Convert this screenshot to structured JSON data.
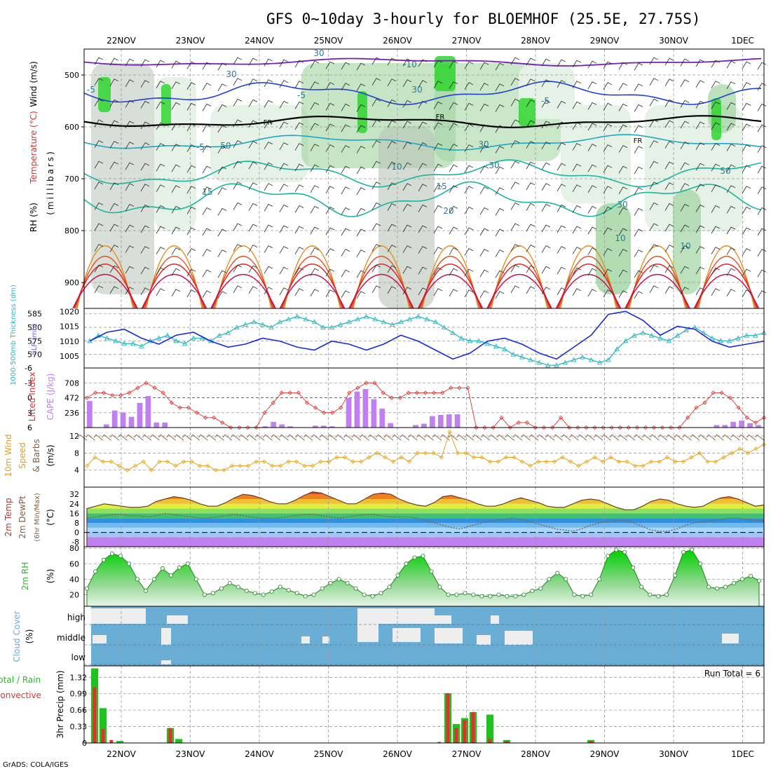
{
  "title": "GFS 0~10day 3-hourly for BLOEMHOF (25.5E, 27.75S)",
  "credit": "GrADS: COLA/IGES",
  "dates": [
    "22NOV",
    "23NOV",
    "24NOV",
    "25NOV",
    "26NOV",
    "27NOV",
    "28NOV",
    "29NOV",
    "30NOV",
    "1DEC"
  ],
  "colors": {
    "rh_light": "#e6f2e6",
    "rh_mid": "#9fd49f",
    "rh_grey": "#b8c4b8",
    "rh_bright": "#2ed62e",
    "temp_cold": "#7a1fb3",
    "temp_blue": "#2040d0",
    "temp_cyan": "#1aa8c8",
    "temp_teal": "#1ab5a0",
    "temp_orange": "#e09020",
    "temp_red": "#e02020",
    "freezing": "#000000",
    "slp": "#1a2bd6",
    "thickness": "#2ab8c0",
    "cape": "#c080f0",
    "li": "#e03030",
    "wind_speed": "#e0a020",
    "wind_barb": "#806040",
    "rh2m": "#20c020",
    "cloud": "#6aaed6",
    "cloud_clear": "#eeeeee",
    "precip_total": "#20c020",
    "precip_conv": "#e03030"
  },
  "panels": {
    "upper_air": {
      "ylabel_wind": "Wind (m/s)",
      "ylabel_temp": "Temperature (°C)",
      "ylabel_rh": "RH (%)",
      "ylabel_p": "(millibars)",
      "yticks": [
        "500",
        "600",
        "700",
        "800",
        "900"
      ],
      "contour_labels": [
        "-10",
        "-5",
        "-5",
        "-5",
        "FR",
        "FR",
        "FR",
        "-5",
        "10",
        "15",
        "15",
        "20",
        "10",
        "10",
        "30",
        "30",
        "30",
        "30",
        "50",
        "50",
        "30",
        "30"
      ]
    },
    "thickness_slp": {
      "ylabel_thk": "1000-500mb Thickness (dm)",
      "ylabel_slp": "SLP (mb)",
      "left_ticks": [
        "585",
        "580",
        "575",
        "570"
      ],
      "right_ticks": [
        "1020",
        "1015",
        "1010",
        "1005"
      ]
    },
    "cape_li": {
      "ylabel_li": "Lifted Index",
      "ylabel_cape": "CAPE (J/kg)",
      "left_ticks": [
        "-6",
        "-3",
        "0",
        "3",
        "6"
      ],
      "right_ticks": [
        "708",
        "472",
        "236"
      ]
    },
    "wind10m": {
      "ylabel1": "10m Wind",
      "ylabel2": "Speed",
      "ylabel3": "& Barbs",
      "ylabel4": "(m/s)",
      "ticks": [
        "12",
        "8",
        "4"
      ]
    },
    "temp2m": {
      "ylabel1": "2m Temp",
      "ylabel2": "2m DewPt",
      "ylabel3": "(6hr Min/Max)",
      "ylabel4": "(°C)",
      "ticks": [
        "32",
        "24",
        "16",
        "8",
        "0",
        "-8"
      ]
    },
    "rh2m": {
      "ylabel": "2m RH",
      "unit": "(%)",
      "ticks": [
        "80",
        "60",
        "40",
        "20"
      ]
    },
    "cloud": {
      "ylabel": "Cloud Cover",
      "unit": "(%)",
      "levels": [
        "high",
        "middle",
        "low"
      ]
    },
    "precip": {
      "ylabel_total": "Total / Rain",
      "ylabel_conv": "Convective",
      "ylabel_unit": "3hr Precip (mm)",
      "ticks": [
        "1.32",
        "0.99",
        "0.66",
        "0.33",
        "0"
      ],
      "run_total_label": "Run Total = 6"
    }
  },
  "chart_data": [
    {
      "type": "line",
      "name": "thickness",
      "x_hours_from_start": [
        0,
        3,
        6,
        9,
        12,
        15,
        18,
        21,
        24,
        27,
        30,
        33,
        36,
        39,
        42,
        45,
        48,
        51,
        54,
        57,
        60,
        63,
        66,
        69,
        72,
        75,
        78,
        81,
        84,
        87,
        90,
        93,
        96,
        99,
        102,
        105,
        108,
        111,
        114,
        117,
        120,
        123,
        126,
        129,
        132,
        135,
        138,
        141,
        144,
        147,
        150,
        153,
        156,
        159,
        162,
        165,
        168,
        171,
        174,
        177,
        180,
        183,
        186,
        189,
        192,
        195,
        198,
        201,
        204,
        207,
        210,
        213,
        216,
        219,
        222,
        225,
        228,
        231,
        234
      ],
      "values": [
        575,
        577,
        576,
        575,
        574,
        574,
        573,
        575,
        576,
        577,
        575,
        574,
        576,
        576,
        575,
        577,
        578,
        580,
        581,
        582,
        581,
        580,
        582,
        583,
        584,
        583,
        582,
        580,
        580,
        581,
        582,
        583,
        584,
        583,
        582,
        581,
        582,
        583,
        584,
        583,
        582,
        580,
        578,
        576,
        575,
        575,
        574,
        573,
        572,
        570,
        569,
        568,
        567,
        566,
        566,
        567,
        568,
        569,
        568,
        567,
        568,
        572,
        575,
        577,
        578,
        577,
        576,
        575,
        577,
        579,
        580,
        578,
        576,
        575,
        575,
        576,
        577,
        577,
        578
      ]
    },
    {
      "type": "line",
      "name": "slp",
      "x_hours_from_start": [
        0,
        6,
        12,
        18,
        24,
        30,
        36,
        42,
        48,
        54,
        60,
        66,
        72,
        78,
        84,
        90,
        96,
        102,
        108,
        114,
        120,
        126,
        132,
        138,
        144,
        150,
        156,
        162,
        168,
        174,
        180,
        186,
        192,
        198,
        204,
        210,
        216,
        222,
        228,
        234
      ],
      "values": [
        1010,
        1013,
        1014,
        1011,
        1009,
        1012,
        1013,
        1010,
        1008,
        1009,
        1011,
        1010,
        1008,
        1007,
        1010,
        1009,
        1007,
        1009,
        1012,
        1010,
        1007,
        1004,
        1006,
        1010,
        1011,
        1009,
        1006,
        1004,
        1008,
        1012,
        1019,
        1020,
        1017,
        1012,
        1015,
        1014,
        1010,
        1008,
        1009,
        1010
      ]
    },
    {
      "type": "bar",
      "name": "cape",
      "values": [
        420,
        0,
        50,
        270,
        240,
        170,
        390,
        500,
        80,
        80,
        0,
        0,
        0,
        0,
        0,
        0,
        0,
        0,
        0,
        0,
        0,
        20,
        90,
        50,
        20,
        0,
        0,
        30,
        30,
        20,
        0,
        470,
        570,
        610,
        450,
        300,
        70,
        0,
        0,
        40,
        60,
        180,
        200,
        210,
        210,
        0,
        0,
        0,
        0,
        0,
        0,
        0,
        0,
        0,
        0,
        0,
        0,
        0,
        0,
        0,
        0,
        0,
        0,
        0,
        0,
        0,
        0,
        0,
        0,
        0,
        0,
        0,
        0,
        0,
        0,
        40,
        40,
        90,
        110,
        70,
        40
      ]
    },
    {
      "type": "line",
      "name": "lifted_index",
      "values": [
        0,
        -1,
        -1,
        -0.5,
        -0.5,
        -1,
        -2,
        -3,
        -2,
        -1,
        1,
        2,
        2,
        3,
        4,
        4,
        5,
        6,
        6,
        6,
        6,
        3,
        1,
        -1,
        -1,
        -1,
        1,
        2,
        3,
        3,
        2,
        -1,
        -2,
        -3,
        -3,
        -1,
        0,
        0,
        -1,
        -1,
        -1,
        -1,
        -1,
        -2,
        -2,
        -2,
        6,
        6,
        6,
        4,
        6,
        5,
        5,
        6,
        6,
        6,
        4,
        6,
        6,
        6,
        6,
        6,
        6,
        6,
        6,
        6,
        6,
        6,
        6,
        6,
        6,
        4,
        2,
        1,
        -1,
        -1,
        0,
        2,
        4,
        5,
        4
      ]
    },
    {
      "type": "line",
      "name": "wind10m_speed",
      "values": [
        5,
        7,
        6,
        6,
        5,
        4,
        5,
        6,
        4,
        6,
        6,
        5,
        6,
        6,
        5,
        5,
        4,
        4,
        5,
        5,
        5,
        6,
        6,
        5,
        5,
        6,
        6,
        5,
        5,
        6,
        6,
        7,
        7,
        6,
        6,
        7,
        8,
        7,
        6,
        7,
        6,
        8,
        8,
        8,
        7,
        13,
        8,
        8,
        7,
        7,
        6,
        6,
        7,
        7,
        6,
        5,
        6,
        6,
        6,
        7,
        6,
        5,
        6,
        7,
        6,
        7,
        6,
        6,
        5,
        5,
        6,
        6,
        7,
        6,
        6,
        7,
        8,
        6,
        6,
        7,
        8,
        9,
        8,
        9,
        10
      ]
    },
    {
      "type": "area",
      "name": "temp2m",
      "values": [
        20,
        22,
        24,
        23,
        22,
        21,
        21,
        22,
        26,
        28,
        30,
        29,
        27,
        24,
        22,
        22,
        25,
        29,
        32,
        31,
        29,
        26,
        24,
        24,
        27,
        31,
        34,
        33,
        30,
        27,
        24,
        24,
        28,
        32,
        33,
        32,
        28,
        25,
        23,
        22,
        25,
        30,
        31,
        29,
        27,
        24,
        22,
        22,
        24,
        27,
        29,
        27,
        25,
        22,
        21,
        21,
        24,
        27,
        28,
        27,
        24,
        21,
        19,
        19,
        22,
        26,
        28,
        27,
        24,
        22,
        21,
        22,
        26,
        29,
        30,
        28,
        25,
        22,
        23
      ]
    },
    {
      "type": "line",
      "name": "dewpt2m",
      "values": [
        12,
        13,
        14,
        15,
        15,
        14,
        14,
        13,
        14,
        16,
        15,
        14,
        13,
        12,
        12,
        13,
        14,
        15,
        14,
        13,
        12,
        12,
        12,
        13,
        14,
        15,
        15,
        14,
        13,
        12,
        13,
        14,
        15,
        15,
        14,
        13,
        13,
        13,
        12,
        10,
        8,
        6,
        4,
        3,
        5,
        7,
        9,
        10,
        11,
        12,
        11,
        9,
        7,
        5,
        3,
        2,
        1,
        3,
        6,
        8,
        9,
        10,
        10,
        8,
        5,
        2,
        1,
        1,
        3,
        6,
        8,
        9,
        10,
        11,
        12,
        12,
        11,
        10,
        10
      ]
    },
    {
      "type": "area",
      "name": "rh2m",
      "values": [
        28,
        50,
        65,
        73,
        70,
        60,
        40,
        25,
        40,
        54,
        45,
        55,
        60,
        40,
        20,
        22,
        28,
        35,
        30,
        25,
        22,
        20,
        24,
        30,
        26,
        22,
        18,
        20,
        28,
        35,
        40,
        35,
        28,
        20,
        18,
        22,
        30,
        45,
        60,
        68,
        70,
        50,
        30,
        20,
        20,
        22,
        20,
        18,
        18,
        20,
        18,
        18,
        20,
        25,
        28,
        40,
        48,
        40,
        20,
        18,
        20,
        40,
        70,
        78,
        75,
        55,
        30,
        20,
        18,
        20,
        45,
        75,
        78,
        60,
        30,
        28,
        30,
        35,
        40,
        44,
        38
      ]
    },
    {
      "type": "bar",
      "name": "precip_total",
      "values": [
        1.5,
        0.7,
        0,
        0.04,
        0,
        0,
        0,
        0,
        0,
        0.3,
        0.08,
        0,
        0,
        0,
        0,
        0,
        0,
        0,
        0,
        0,
        0,
        0,
        0,
        0,
        0,
        0,
        0,
        0,
        0,
        0,
        0,
        0,
        0,
        0,
        0,
        0,
        0,
        0,
        0,
        0,
        0,
        0,
        1.0,
        0.38,
        0.5,
        0.62,
        0,
        0.57,
        0,
        0.06,
        0,
        0,
        0,
        0,
        0,
        0,
        0,
        0,
        0,
        0.06,
        0,
        0,
        0,
        0,
        0,
        0,
        0,
        0,
        0,
        0,
        0,
        0,
        0,
        0,
        0,
        0,
        0,
        0,
        0,
        0
      ]
    },
    {
      "type": "bar",
      "name": "precip_convective",
      "values": [
        1.12,
        0.28,
        0.06,
        0,
        0,
        0,
        0,
        0,
        0,
        0.3,
        0,
        0,
        0,
        0,
        0,
        0,
        0,
        0,
        0,
        0,
        0,
        0,
        0,
        0,
        0,
        0,
        0,
        0,
        0,
        0,
        0,
        0,
        0,
        0,
        0,
        0,
        0,
        0,
        0,
        0,
        0,
        0.02,
        1.0,
        0.3,
        0.46,
        0.62,
        0,
        0.08,
        0,
        0.04,
        0,
        0,
        0,
        0,
        0,
        0,
        0,
        0,
        0,
        0.04,
        0,
        0,
        0,
        0,
        0,
        0,
        0,
        0,
        0,
        0,
        0,
        0,
        0,
        0,
        0,
        0,
        0,
        0,
        0,
        0
      ]
    }
  ]
}
